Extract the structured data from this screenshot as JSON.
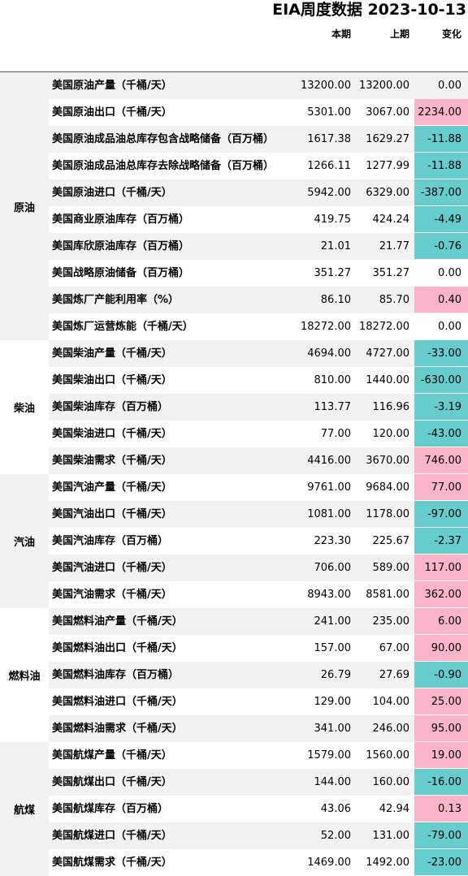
{
  "title": "EIA周度数据 2023-10-13",
  "headers": {
    "current": "本期",
    "previous": "上期",
    "change": "变化"
  },
  "colors": {
    "positive": "#fbb4c9",
    "negative": "#66cdcc",
    "stripe": "#f2f2f2"
  },
  "groups": [
    {
      "label": "原油",
      "rows": [
        {
          "name": "美国原油产量（千桶/天）",
          "current": "13200.00",
          "previous": "13200.00",
          "change": "0.00",
          "sign": "zero"
        },
        {
          "name": "美国原油出口（千桶/天）",
          "current": "5301.00",
          "previous": "3067.00",
          "change": "2234.00",
          "sign": "pos"
        },
        {
          "name": "美国原油成品油总库存包含战略储备（百万桶）",
          "current": "1617.38",
          "previous": "1629.27",
          "change": "-11.88",
          "sign": "neg"
        },
        {
          "name": "美国原油成品油总库存去除战略储备（百万桶）",
          "current": "1266.11",
          "previous": "1277.99",
          "change": "-11.88",
          "sign": "neg"
        },
        {
          "name": "美国原油进口（千桶/天）",
          "current": "5942.00",
          "previous": "6329.00",
          "change": "-387.00",
          "sign": "neg"
        },
        {
          "name": "美国商业原油库存（百万桶）",
          "current": "419.75",
          "previous": "424.24",
          "change": "-4.49",
          "sign": "neg"
        },
        {
          "name": "美国库欣原油库存（百万桶）",
          "current": "21.01",
          "previous": "21.77",
          "change": "-0.76",
          "sign": "neg"
        },
        {
          "name": "美国战略原油储备（百万桶）",
          "current": "351.27",
          "previous": "351.27",
          "change": "0.00",
          "sign": "zero"
        },
        {
          "name": "美国炼厂产能利用率（%）",
          "current": "86.10",
          "previous": "85.70",
          "change": "0.40",
          "sign": "pos"
        },
        {
          "name": "美国炼厂运营炼能（千桶/天）",
          "current": "18272.00",
          "previous": "18272.00",
          "change": "0.00",
          "sign": "zero"
        }
      ]
    },
    {
      "label": "柴油",
      "rows": [
        {
          "name": "美国柴油产量（千桶/天）",
          "current": "4694.00",
          "previous": "4727.00",
          "change": "-33.00",
          "sign": "neg"
        },
        {
          "name": "美国柴油出口（千桶/天）",
          "current": "810.00",
          "previous": "1440.00",
          "change": "-630.00",
          "sign": "neg"
        },
        {
          "name": "美国柴油库存（百万桶）",
          "current": "113.77",
          "previous": "116.96",
          "change": "-3.19",
          "sign": "neg"
        },
        {
          "name": "美国柴油进口（千桶/天）",
          "current": "77.00",
          "previous": "120.00",
          "change": "-43.00",
          "sign": "neg"
        },
        {
          "name": "美国柴油需求（千桶/天）",
          "current": "4416.00",
          "previous": "3670.00",
          "change": "746.00",
          "sign": "pos"
        }
      ]
    },
    {
      "label": "汽油",
      "rows": [
        {
          "name": "美国汽油产量（千桶/天）",
          "current": "9761.00",
          "previous": "9684.00",
          "change": "77.00",
          "sign": "pos"
        },
        {
          "name": "美国汽油出口（千桶/天）",
          "current": "1081.00",
          "previous": "1178.00",
          "change": "-97.00",
          "sign": "neg"
        },
        {
          "name": "美国汽油库存（百万桶）",
          "current": "223.30",
          "previous": "225.67",
          "change": "-2.37",
          "sign": "neg"
        },
        {
          "name": "美国汽油进口（千桶/天）",
          "current": "706.00",
          "previous": "589.00",
          "change": "117.00",
          "sign": "pos"
        },
        {
          "name": "美国汽油需求（千桶/天）",
          "current": "8943.00",
          "previous": "8581.00",
          "change": "362.00",
          "sign": "pos"
        }
      ]
    },
    {
      "label": "燃料油",
      "rows": [
        {
          "name": "美国燃料油产量（千桶/天）",
          "current": "241.00",
          "previous": "235.00",
          "change": "6.00",
          "sign": "pos"
        },
        {
          "name": "美国燃料油出口（千桶/天）",
          "current": "157.00",
          "previous": "67.00",
          "change": "90.00",
          "sign": "pos"
        },
        {
          "name": "美国燃料油库存（百万桶）",
          "current": "26.79",
          "previous": "27.69",
          "change": "-0.90",
          "sign": "neg"
        },
        {
          "name": "美国燃料油进口（千桶/天）",
          "current": "129.00",
          "previous": "104.00",
          "change": "25.00",
          "sign": "pos"
        },
        {
          "name": "美国燃料油需求（千桶/天）",
          "current": "341.00",
          "previous": "246.00",
          "change": "95.00",
          "sign": "pos"
        }
      ]
    },
    {
      "label": "航煤",
      "rows": [
        {
          "name": "美国航煤产量（千桶/天）",
          "current": "1579.00",
          "previous": "1560.00",
          "change": "19.00",
          "sign": "pos"
        },
        {
          "name": "美国航煤出口（千桶/天）",
          "current": "144.00",
          "previous": "160.00",
          "change": "-16.00",
          "sign": "neg"
        },
        {
          "name": "美国航煤库存（百万桶）",
          "current": "43.06",
          "previous": "42.94",
          "change": "0.13",
          "sign": "pos"
        },
        {
          "name": "美国航煤进口（千桶/天）",
          "current": "52.00",
          "previous": "131.00",
          "change": "-79.00",
          "sign": "neg"
        },
        {
          "name": "美国航煤需求（千桶/天）",
          "current": "1469.00",
          "previous": "1492.00",
          "change": "-23.00",
          "sign": "neg"
        }
      ]
    }
  ]
}
